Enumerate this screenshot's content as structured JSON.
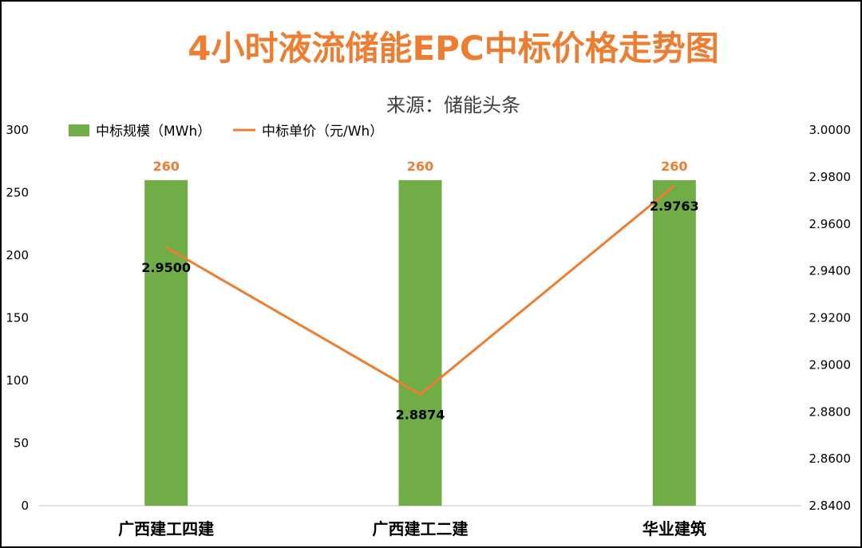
{
  "chart_data": {
    "type": "bar",
    "title": "4小时液流储能EPC中标价格走势图",
    "subtitle": "来源：储能头条",
    "categories": [
      "广西建工四建",
      "广西建工二建",
      "华业建筑"
    ],
    "series": [
      {
        "name": "中标规模（MWh）",
        "type": "bar",
        "axis": "left",
        "values": [
          260,
          260,
          260
        ],
        "labels": [
          "260",
          "260",
          "260"
        ],
        "color": "#70AD47"
      },
      {
        "name": "中标单价（元/Wh）",
        "type": "line",
        "axis": "right",
        "values": [
          2.95,
          2.8874,
          2.9763
        ],
        "labels": [
          "2.9500",
          "2.8874",
          "2.9763"
        ],
        "color": "#ED7D31"
      }
    ],
    "y_left": {
      "range": [
        0,
        300
      ],
      "ticks": [
        "0",
        "50",
        "100",
        "150",
        "200",
        "250",
        "300"
      ],
      "tick_values": [
        0,
        50,
        100,
        150,
        200,
        250,
        300
      ]
    },
    "y_right": {
      "range": [
        2.84,
        3.0
      ],
      "ticks": [
        "2.8400",
        "2.8600",
        "2.8800",
        "2.9000",
        "2.9200",
        "2.9400",
        "2.9600",
        "2.9800",
        "3.0000"
      ],
      "tick_values": [
        2.84,
        2.86,
        2.88,
        2.9,
        2.92,
        2.94,
        2.96,
        2.98,
        3.0
      ]
    },
    "grid": false,
    "legend_position": "top-left"
  }
}
